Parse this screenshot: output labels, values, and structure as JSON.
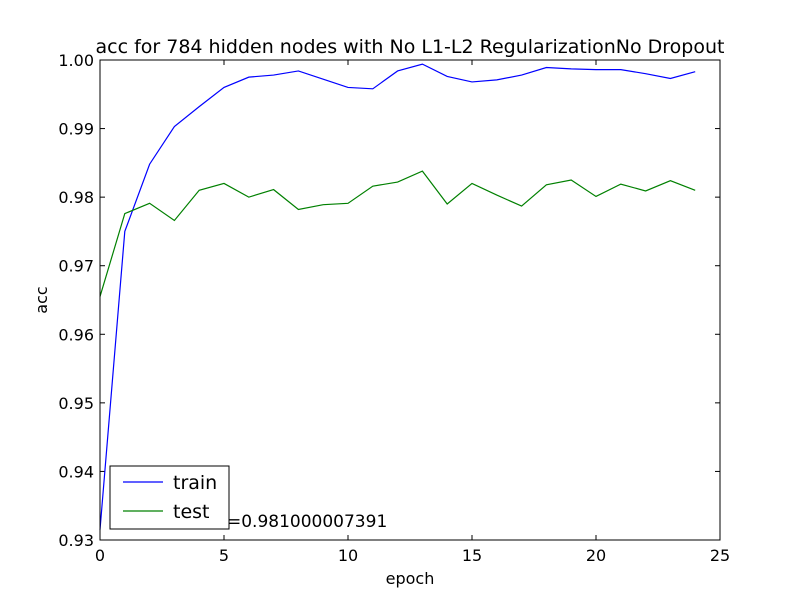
{
  "chart_data": {
    "type": "line",
    "title": "acc for 784 hidden nodes with No L1-L2 RegularizationNo Dropout",
    "xlabel": "epoch",
    "ylabel": "acc",
    "xlim": [
      0,
      25
    ],
    "ylim": [
      0.93,
      1.0
    ],
    "xticks": [
      "0",
      "5",
      "10",
      "15",
      "20",
      "25"
    ],
    "yticks": [
      "0.93",
      "0.94",
      "0.95",
      "0.96",
      "0.97",
      "0.98",
      "0.99",
      "1.00"
    ],
    "grid": false,
    "legend_position": "lower-left",
    "x": [
      0,
      1,
      2,
      3,
      4,
      5,
      6,
      7,
      8,
      9,
      10,
      11,
      12,
      13,
      14,
      15,
      16,
      17,
      18,
      19,
      20,
      21,
      22,
      23,
      24
    ],
    "series": [
      {
        "name": "train",
        "color": "#0000ff",
        "values": [
          0.9315,
          0.975,
          0.9848,
          0.9903,
          0.9932,
          0.996,
          0.9975,
          0.9978,
          0.9984,
          0.9972,
          0.996,
          0.9958,
          0.9984,
          0.9994,
          0.9976,
          0.9968,
          0.9971,
          0.9978,
          0.9989,
          0.9987,
          0.9986,
          0.9986,
          0.998,
          0.9973,
          0.9983
        ]
      },
      {
        "name": "test",
        "color": "#008000",
        "values": [
          0.9655,
          0.9776,
          0.9791,
          0.9766,
          0.981,
          0.982,
          0.98,
          0.9811,
          0.9782,
          0.9789,
          0.9791,
          0.9816,
          0.9822,
          0.9838,
          0.979,
          0.982,
          0.9803,
          0.9787,
          0.9818,
          0.9825,
          0.9801,
          0.9819,
          0.9809,
          0.9824,
          0.981
        ]
      }
    ],
    "annotation": "=0.981000007391"
  }
}
